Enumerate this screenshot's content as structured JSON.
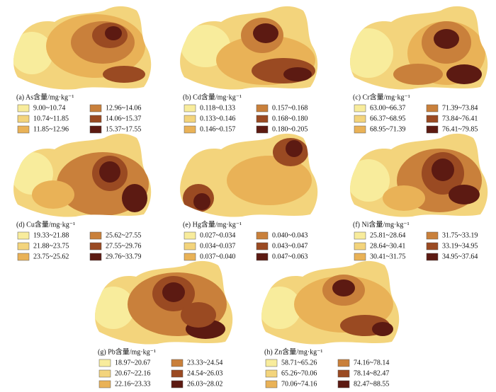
{
  "colors": [
    "#f8ec9c",
    "#f3d47c",
    "#e9b257",
    "#c9803b",
    "#9a4a22",
    "#5c1a12"
  ],
  "panels": [
    {
      "title": "(a) As含量/mg·kg⁻¹",
      "legend": [
        "9.00~10.74",
        "10.74~11.85",
        "11.85~12.96",
        "12.96~14.06",
        "14.06~15.37",
        "15.37~17.55"
      ]
    },
    {
      "title": "(b) Cd含量/mg·kg⁻¹",
      "legend": [
        "0.118~0.133",
        "0.133~0.146",
        "0.146~0.157",
        "0.157~0.168",
        "0.168~0.180",
        "0.180~0.205"
      ]
    },
    {
      "title": "(c) Cr含量/mg·kg⁻¹",
      "legend": [
        "63.00~66.37",
        "66.37~68.95",
        "68.95~71.39",
        "71.39~73.84",
        "73.84~76.41",
        "76.41~79.85"
      ]
    },
    {
      "title": "(d) Cu含量/mg·kg⁻¹",
      "legend": [
        "19.33~21.88",
        "21.88~23.75",
        "23.75~25.62",
        "25.62~27.55",
        "27.55~29.76",
        "29.76~33.79"
      ]
    },
    {
      "title": "(e) Hg含量/mg·kg⁻¹",
      "legend": [
        "0.027~0.034",
        "0.034~0.037",
        "0.037~0.040",
        "0.040~0.043",
        "0.043~0.047",
        "0.047~0.063"
      ]
    },
    {
      "title": "(f) Ni含量/mg·kg⁻¹",
      "legend": [
        "25.81~28.64",
        "28.64~30.41",
        "30.41~31.75",
        "31.75~33.19",
        "33.19~34.95",
        "34.95~37.64"
      ]
    },
    {
      "title": "(g) Pb含量/mg·kg⁻¹",
      "legend": [
        "18.97~20.67",
        "20.67~22.16",
        "22.16~23.33",
        "23.33~24.54",
        "24.54~26.03",
        "26.03~28.02"
      ]
    },
    {
      "title": "(h) Zn含量/mg·kg⁻¹",
      "legend": [
        "58.71~65.26",
        "65.26~70.06",
        "70.06~74.16",
        "74.16~78.14",
        "78.14~82.47",
        "82.47~88.55"
      ]
    }
  ]
}
